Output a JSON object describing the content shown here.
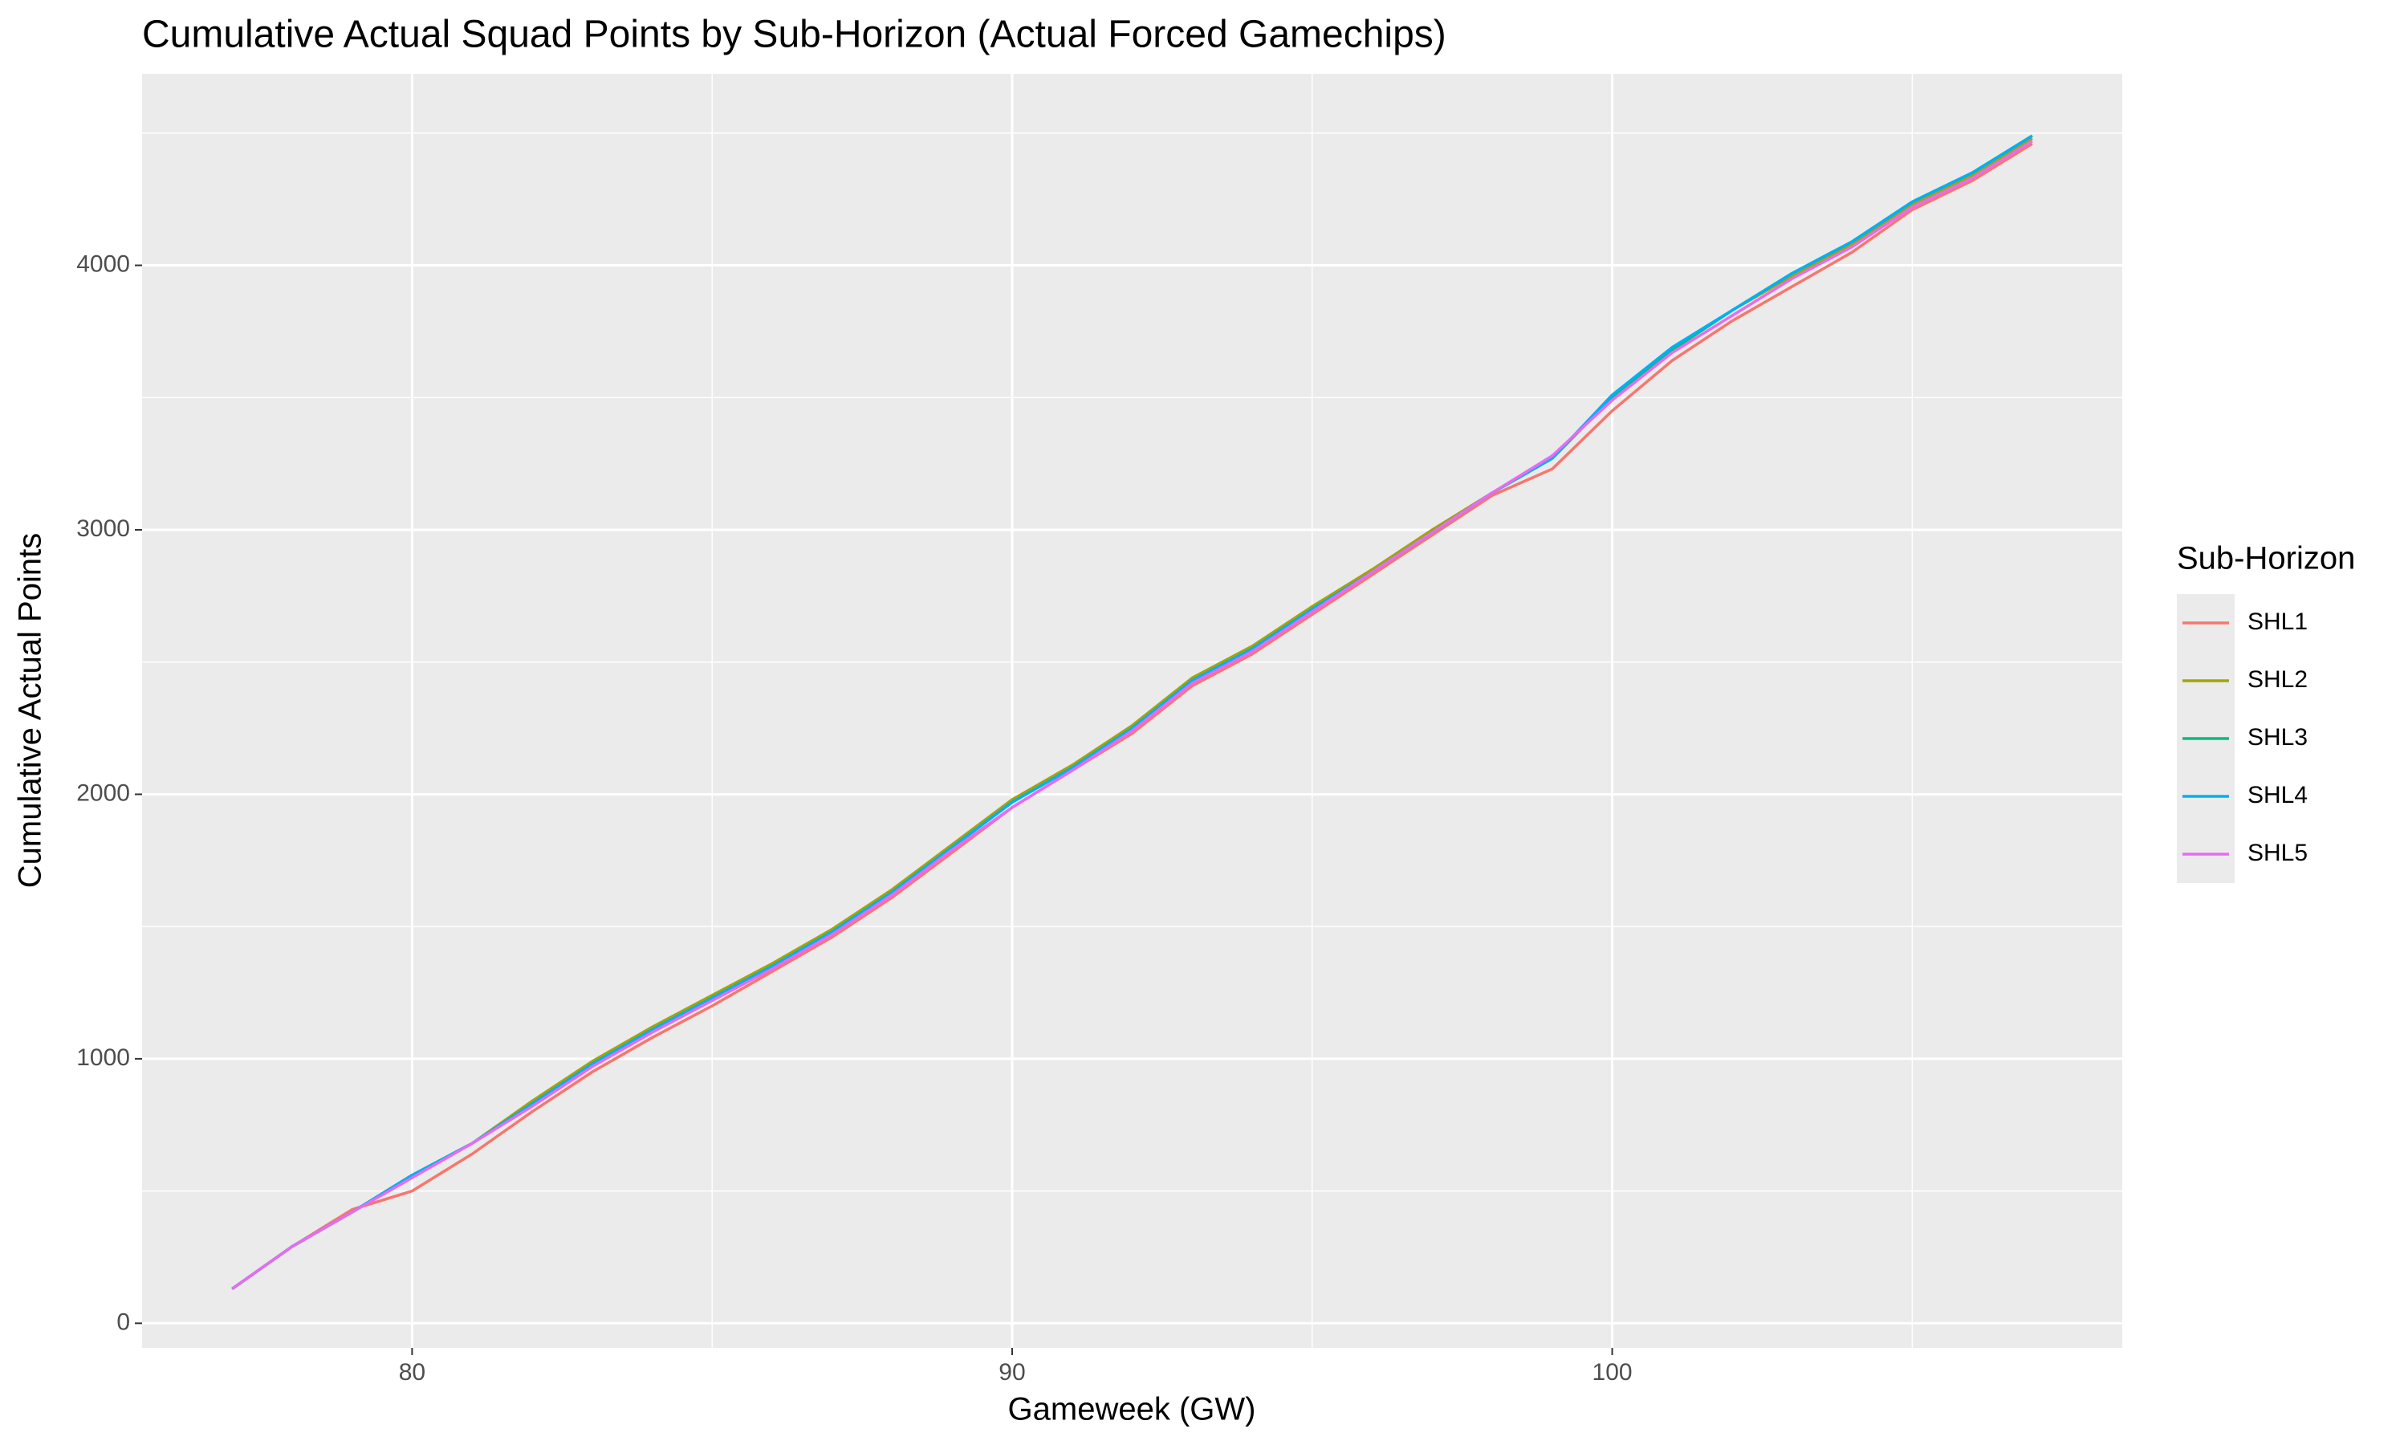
{
  "chart_data": {
    "type": "line",
    "title": "Cumulative Actual Squad Points by Sub-Horizon (Actual Forced Gamechips)",
    "x_label": "Gameweek (GW)",
    "y_label": "Cumulative Actual Points",
    "legend_title": "Sub-Horizon",
    "legend": "right",
    "grid": true,
    "x": [
      77,
      78,
      79,
      80,
      81,
      82,
      83,
      84,
      85,
      86,
      87,
      88,
      89,
      90,
      91,
      92,
      93,
      94,
      95,
      96,
      97,
      98,
      99,
      100,
      101,
      102,
      103,
      104,
      105,
      106,
      107
    ],
    "xlim": [
      75.5,
      108.5
    ],
    "xticks": [
      80,
      90,
      100
    ],
    "x_minor_grid": [
      85,
      95,
      105
    ],
    "ylim": [
      -93,
      4724
    ],
    "yticks": [
      0,
      1000,
      2000,
      3000,
      4000
    ],
    "y_minor_grid": [
      500,
      1500,
      2500,
      3500,
      4500
    ],
    "series": [
      {
        "name": "SHL1",
        "color": "#F8766D",
        "values": [
          130,
          290,
          430,
          500,
          640,
          800,
          950,
          1080,
          1200,
          1330,
          1460,
          1610,
          1780,
          1950,
          2090,
          2230,
          2410,
          2530,
          2680,
          2830,
          2980,
          3130,
          3230,
          3450,
          3640,
          3790,
          3920,
          4050,
          4210,
          4320,
          4460
        ]
      },
      {
        "name": "SHL2",
        "color": "#A3A500",
        "values": [
          130,
          290,
          420,
          560,
          680,
          840,
          990,
          1120,
          1240,
          1360,
          1490,
          1640,
          1810,
          1980,
          2110,
          2260,
          2440,
          2560,
          2710,
          2850,
          3000,
          3140,
          3270,
          3500,
          3680,
          3830,
          3960,
          4080,
          4230,
          4340,
          4480
        ]
      },
      {
        "name": "SHL3",
        "color": "#00BF7D",
        "values": [
          130,
          290,
          420,
          560,
          680,
          830,
          980,
          1110,
          1230,
          1350,
          1480,
          1630,
          1800,
          1970,
          2100,
          2250,
          2430,
          2550,
          2700,
          2840,
          2990,
          3140,
          3270,
          3500,
          3680,
          3830,
          3970,
          4090,
          4240,
          4350,
          4490
        ]
      },
      {
        "name": "SHL4",
        "color": "#00B0F6",
        "values": [
          130,
          290,
          420,
          560,
          680,
          830,
          980,
          1110,
          1230,
          1350,
          1480,
          1630,
          1800,
          1970,
          2100,
          2250,
          2430,
          2550,
          2700,
          2840,
          2990,
          3140,
          3270,
          3510,
          3690,
          3830,
          3970,
          4090,
          4240,
          4350,
          4490
        ]
      },
      {
        "name": "SHL5",
        "color": "#E76BF3",
        "values": [
          130,
          290,
          420,
          550,
          680,
          820,
          970,
          1100,
          1220,
          1340,
          1470,
          1620,
          1790,
          1950,
          2090,
          2240,
          2420,
          2540,
          2690,
          2840,
          2990,
          3140,
          3280,
          3490,
          3670,
          3810,
          3950,
          4070,
          4220,
          4330,
          4470
        ]
      }
    ]
  }
}
